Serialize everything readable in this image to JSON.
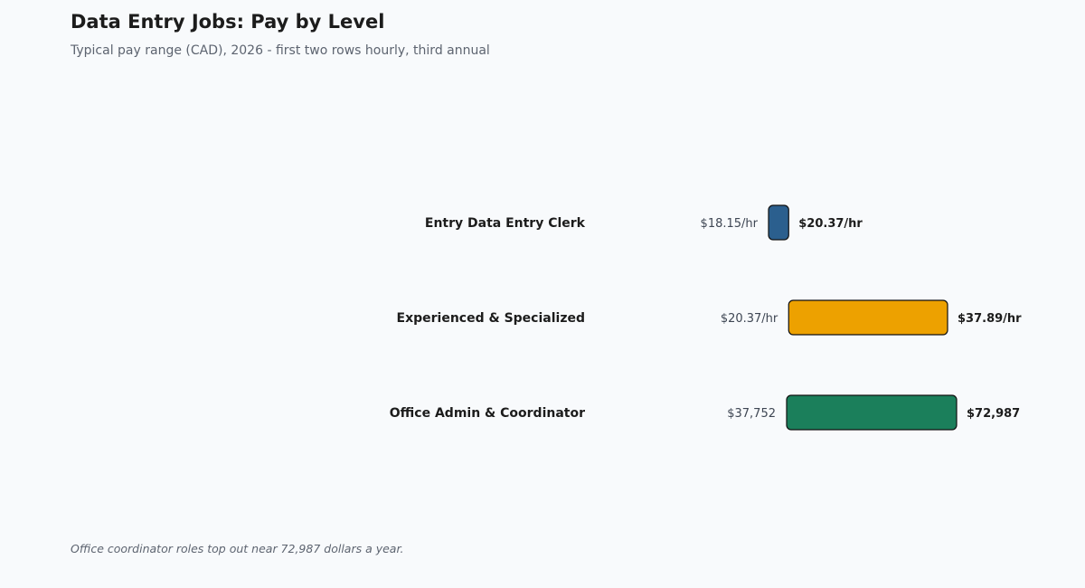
{
  "header": {
    "title": "Data Entry Jobs: Pay by Level",
    "subtitle": "Typical pay range (CAD), 2026 - first two rows hourly, third annual"
  },
  "footnote": "Office coordinator roles top out near 72,987 dollars a year.",
  "chart_data": {
    "type": "range-bar",
    "title": "Data Entry Jobs: Pay by Level",
    "subtitle": "Typical pay range (CAD), 2026 - first two rows hourly, third annual",
    "grid": false,
    "legend": "none",
    "rows": [
      {
        "category": "Entry Data Entry Clerk",
        "unit": "hourly",
        "low": 18.15,
        "high": 20.37,
        "low_label": "$18.15/hr",
        "high_label": "$20.37/hr",
        "color": "#2b5f8e"
      },
      {
        "category": "Experienced & Specialized",
        "unit": "hourly",
        "low": 20.37,
        "high": 37.89,
        "low_label": "$20.37/hr",
        "high_label": "$37.89/hr",
        "color": "#eda100"
      },
      {
        "category": "Office Admin & Coordinator",
        "unit": "annual",
        "low": 37752,
        "high": 72987,
        "low_label": "$37,752",
        "high_label": "$72,987",
        "color": "#1b7f5b"
      }
    ]
  }
}
